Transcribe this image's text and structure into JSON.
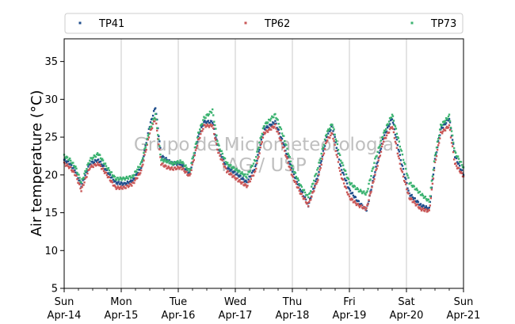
{
  "chart_data": {
    "type": "scatter",
    "title": "",
    "xlabel": "",
    "ylabel": "Air temperature (°C)",
    "ylim": [
      5,
      38
    ],
    "yticks": [
      5,
      10,
      15,
      20,
      25,
      30,
      35
    ],
    "x_unit": "day",
    "xlim": [
      0,
      7
    ],
    "x_ticks": [
      {
        "x": 0,
        "day": "Sun",
        "date": "Apr-14"
      },
      {
        "x": 1,
        "day": "Mon",
        "date": "Apr-15"
      },
      {
        "x": 2,
        "day": "Tue",
        "date": "Apr-16"
      },
      {
        "x": 3,
        "day": "Wed",
        "date": "Apr-17"
      },
      {
        "x": 4,
        "day": "Thu",
        "date": "Apr-18"
      },
      {
        "x": 5,
        "day": "Fri",
        "date": "Apr-19"
      },
      {
        "x": 6,
        "day": "Sat",
        "date": "Apr-20"
      },
      {
        "x": 7,
        "day": "Sun",
        "date": "Apr-21"
      }
    ],
    "grid": "vertical",
    "legend_position": "top",
    "watermark": [
      "Grupo de Micrometeorologia",
      "IAG / USP"
    ],
    "series": [
      {
        "name": "TP41",
        "color": "#1f4e8c",
        "x": [
          0,
          0.1,
          0.2,
          0.3,
          0.45,
          0.6,
          0.75,
          0.9,
          1.05,
          1.2,
          1.35,
          1.5,
          1.6,
          1.7,
          1.8,
          1.9,
          2.05,
          2.2,
          2.35,
          2.45,
          2.6,
          2.7,
          2.85,
          3.05,
          3.2,
          3.35,
          3.5,
          3.7,
          3.85,
          4.0,
          4.15,
          4.28,
          4.45,
          4.6,
          4.7,
          4.85,
          5.0,
          5.15,
          5.3,
          5.45,
          5.6,
          5.75,
          5.9,
          6.05,
          6.25,
          6.4,
          6.5,
          6.6,
          6.75,
          6.85,
          7.0
        ],
        "y": [
          22.0,
          21.5,
          20.5,
          18.6,
          21.5,
          22.0,
          20.5,
          19.0,
          18.8,
          19.2,
          21.0,
          26.5,
          29.0,
          22.5,
          22.0,
          21.5,
          21.5,
          20.2,
          25.0,
          27.0,
          27.0,
          23.5,
          21.0,
          20.0,
          19.0,
          21.0,
          26.0,
          27.0,
          24.0,
          20.5,
          18.0,
          16.0,
          20.0,
          25.0,
          26.5,
          21.0,
          18.0,
          16.5,
          15.3,
          20.5,
          25.0,
          27.5,
          22.0,
          17.5,
          16.0,
          15.5,
          22.0,
          26.0,
          27.5,
          22.5,
          20.0
        ]
      },
      {
        "name": "TP62",
        "color": "#c95757",
        "x": [
          0,
          0.1,
          0.2,
          0.3,
          0.45,
          0.6,
          0.75,
          0.9,
          1.05,
          1.2,
          1.35,
          1.5,
          1.6,
          1.7,
          1.8,
          1.9,
          2.05,
          2.2,
          2.35,
          2.45,
          2.6,
          2.7,
          2.85,
          3.05,
          3.2,
          3.35,
          3.5,
          3.7,
          3.85,
          4.0,
          4.15,
          4.28,
          4.45,
          4.6,
          4.7,
          4.85,
          5.0,
          5.15,
          5.3,
          5.45,
          5.6,
          5.75,
          5.9,
          6.05,
          6.25,
          6.4,
          6.5,
          6.6,
          6.75,
          6.85,
          7.0
        ],
        "y": [
          21.5,
          21.0,
          20.0,
          18.0,
          21.0,
          21.5,
          20.0,
          18.3,
          18.3,
          18.8,
          20.5,
          25.5,
          27.5,
          21.5,
          21.0,
          20.8,
          21.0,
          19.8,
          24.5,
          26.5,
          26.5,
          23.0,
          20.5,
          19.3,
          18.5,
          20.5,
          25.5,
          26.5,
          23.5,
          19.8,
          17.5,
          16.0,
          19.5,
          24.5,
          25.5,
          20.0,
          17.0,
          16.0,
          15.5,
          20.0,
          24.5,
          26.5,
          21.0,
          17.0,
          15.5,
          15.2,
          21.5,
          25.5,
          26.5,
          21.5,
          19.8
        ]
      },
      {
        "name": "TP73",
        "color": "#3cb371",
        "x": [
          0,
          0.1,
          0.2,
          0.3,
          0.45,
          0.6,
          0.75,
          0.9,
          1.05,
          1.2,
          1.35,
          1.5,
          1.6,
          1.7,
          1.8,
          1.9,
          2.05,
          2.2,
          2.35,
          2.45,
          2.6,
          2.7,
          2.85,
          3.05,
          3.2,
          3.35,
          3.5,
          3.7,
          3.85,
          4.0,
          4.15,
          4.28,
          4.45,
          4.6,
          4.7,
          4.85,
          5.0,
          5.15,
          5.3,
          5.45,
          5.6,
          5.75,
          5.9,
          6.05,
          6.25,
          6.4,
          6.5,
          6.6,
          6.75,
          6.85,
          7.0
        ],
        "y": [
          22.5,
          22.0,
          21.0,
          19.0,
          22.0,
          22.8,
          21.0,
          19.5,
          19.5,
          19.8,
          21.5,
          26.0,
          28.0,
          22.0,
          21.8,
          21.5,
          21.8,
          20.5,
          25.5,
          27.5,
          28.5,
          24.0,
          21.5,
          20.5,
          19.8,
          22.0,
          26.5,
          28.0,
          25.0,
          21.0,
          18.5,
          17.0,
          21.0,
          25.5,
          26.8,
          22.0,
          19.0,
          18.0,
          17.5,
          22.0,
          25.5,
          28.0,
          23.5,
          19.0,
          17.5,
          16.5,
          22.5,
          26.5,
          27.8,
          23.0,
          21.0
        ]
      }
    ]
  }
}
